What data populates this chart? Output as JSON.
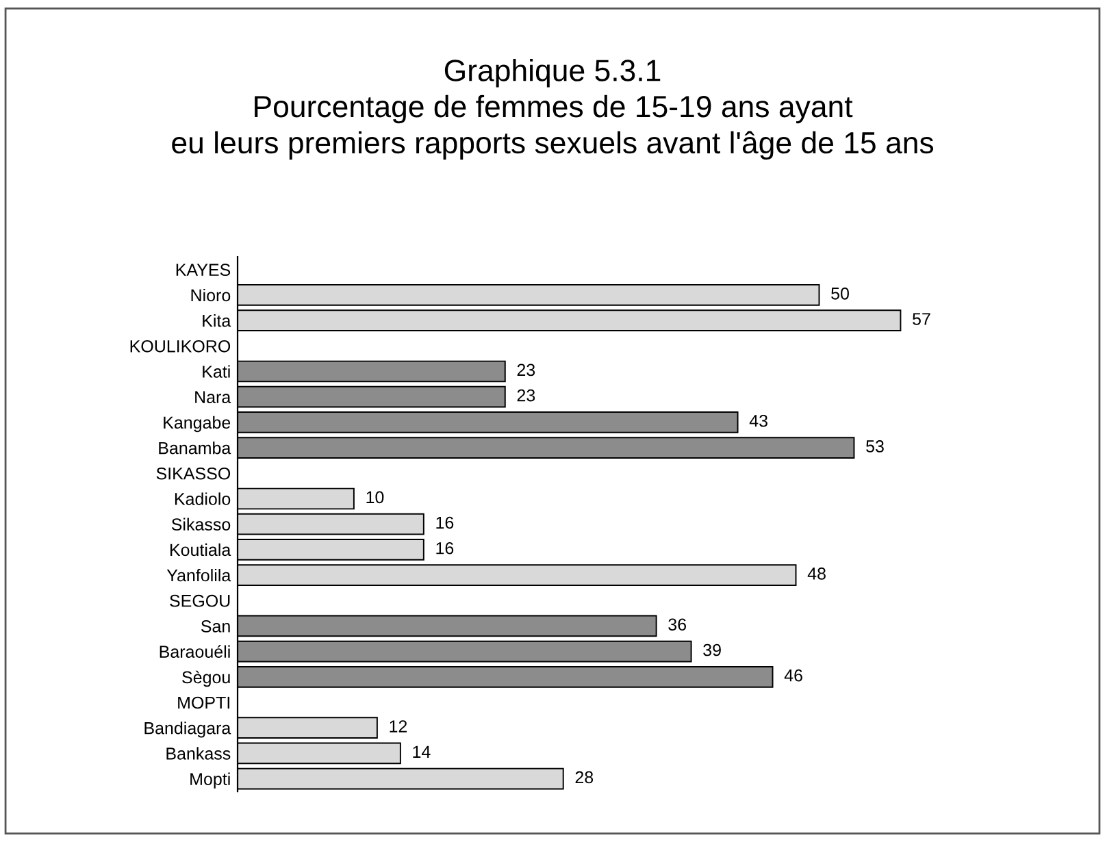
{
  "chart_data": {
    "type": "bar",
    "orientation": "horizontal",
    "title": "Graphique 5.3.1\nPourcentage de femmes de 15-19 ans ayant\neu leurs premiers rapports sexuels avant l'âge de 15 ans",
    "categories": [
      "KAYES",
      "Nioro",
      "Kita",
      "KOULIKORO",
      "Kati",
      "Nara",
      "Kangabe",
      "Banamba",
      "SIKASSO",
      "Kadiolo",
      "Sikasso",
      "Koutiala",
      "Yanfolila",
      "SEGOU",
      "San",
      "Baraouéli",
      "Sègou",
      "MOPTI",
      "Bandiagara",
      "Bankass",
      "Mopti"
    ],
    "values": [
      null,
      50,
      57,
      null,
      23,
      23,
      43,
      53,
      null,
      10,
      16,
      16,
      48,
      null,
      36,
      39,
      46,
      null,
      12,
      14,
      28
    ],
    "colors": [
      "#d9d9d9",
      "#d9d9d9",
      "#d9d9d9",
      "#8c8c8c",
      "#8c8c8c",
      "#8c8c8c",
      "#8c8c8c",
      "#8c8c8c",
      "#d9d9d9",
      "#d9d9d9",
      "#d9d9d9",
      "#d9d9d9",
      "#d9d9d9",
      "#8c8c8c",
      "#8c8c8c",
      "#8c8c8c",
      "#8c8c8c",
      "#d9d9d9",
      "#d9d9d9",
      "#d9d9d9",
      "#d9d9d9"
    ],
    "data_labels": true
  }
}
